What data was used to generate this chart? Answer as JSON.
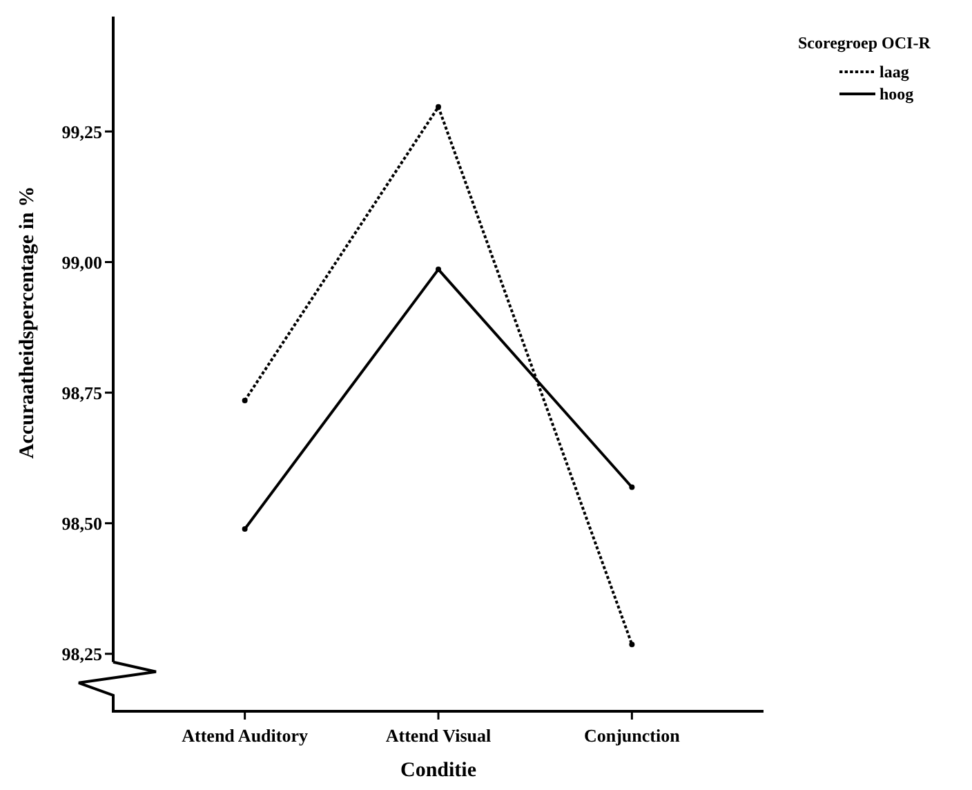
{
  "chart_data": {
    "type": "line",
    "xlabel": "Conditie",
    "ylabel": "Accuraatheidspercentage in %",
    "legend_title": "Scoregroep OCI-R",
    "legend": "top right",
    "marker": "circle",
    "categories": [
      "Attend Auditory",
      "Attend Visual",
      "Conjunction"
    ],
    "ylim": [
      98.14,
      99.47
    ],
    "yticks": [
      {
        "value": 98.25,
        "label": "98,25"
      },
      {
        "value": 98.5,
        "label": "98,50"
      },
      {
        "value": 98.75,
        "label": "98,75"
      },
      {
        "value": 99,
        "label": "99,00"
      },
      {
        "value": 99.25,
        "label": "99,25"
      }
    ],
    "series": [
      {
        "name": "laag",
        "color": "#000000",
        "line_style": "dotted",
        "values": [
          98.735,
          99.297,
          98.268
        ]
      },
      {
        "name": "hoog",
        "color": "#000000",
        "line_style": "solid",
        "values": [
          98.489,
          98.986,
          98.569
        ]
      }
    ]
  }
}
